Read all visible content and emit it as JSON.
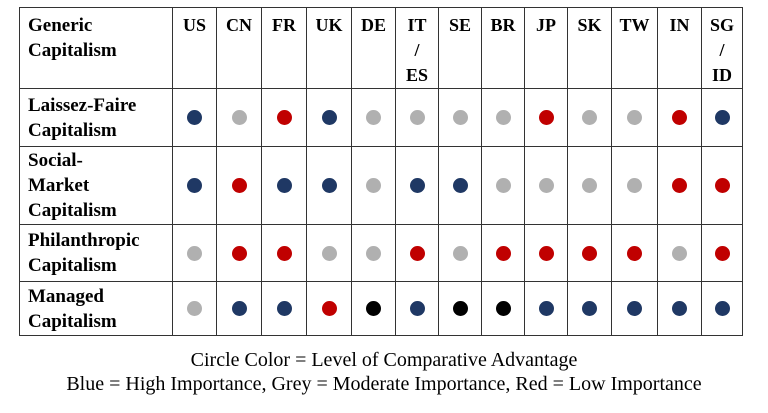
{
  "table": {
    "corner_label": "Generic\nCapitalism",
    "columns": [
      "US",
      "CN",
      "FR",
      "UK",
      "DE",
      "IT\n/\nES",
      "SE",
      "BR",
      "JP",
      "SK",
      "TW",
      "IN",
      "SG\n/\nID"
    ],
    "rows": [
      {
        "label": "Laissez-Faire\nCapitalism",
        "cells": [
          "blue",
          "grey",
          "red",
          "blue",
          "grey",
          "grey",
          "grey",
          "grey",
          "red",
          "grey",
          "grey",
          "red",
          "blue"
        ]
      },
      {
        "label": "Social-\nMarket\nCapitalism",
        "cells": [
          "blue",
          "red",
          "blue",
          "blue",
          "grey",
          "blue",
          "blue",
          "grey",
          "grey",
          "grey",
          "grey",
          "red",
          "red"
        ]
      },
      {
        "label": "Philanthropic\nCapitalism",
        "cells": [
          "grey",
          "red",
          "red",
          "grey",
          "grey",
          "red",
          "grey",
          "red",
          "red",
          "red",
          "red",
          "grey",
          "red"
        ]
      },
      {
        "label": "Managed\nCapitalism",
        "cells": [
          "grey",
          "blue",
          "blue",
          "red",
          "black",
          "blue",
          "black",
          "black",
          "blue",
          "blue",
          "blue",
          "blue",
          "blue"
        ]
      }
    ]
  },
  "colors": {
    "blue": "#1f3864",
    "grey": "#b0b0b0",
    "red": "#c00000",
    "black": "#000000"
  },
  "caption": {
    "line1": "Circle Color = Level of Comparative Advantage",
    "line2": "Blue = High Importance, Grey = Moderate Importance, Red = Low Importance"
  }
}
